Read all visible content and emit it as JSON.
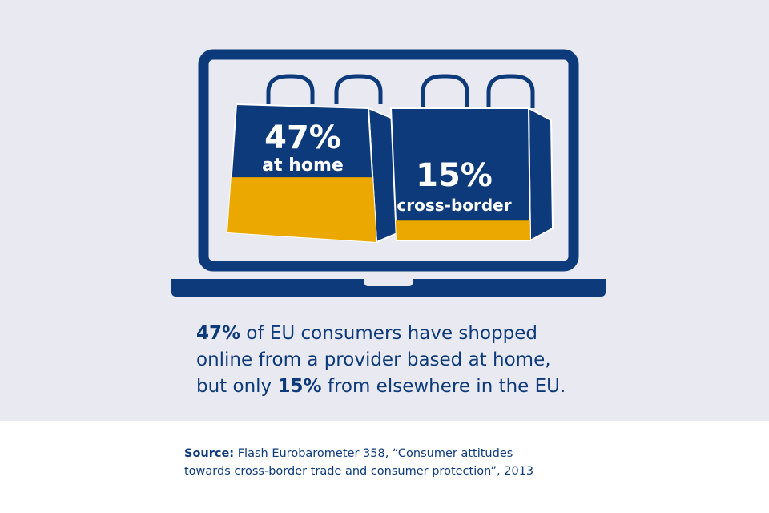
{
  "bags": [
    {
      "value": 47,
      "value_label": "47%",
      "label": "at home"
    },
    {
      "value": 15,
      "value_label": "15%",
      "label": "cross-border"
    }
  ],
  "statement": [
    "47%",
    " of EU consumers have shopped online from a provider based at home, but only ",
    "15%",
    " from elsewhere in the EU."
  ],
  "source": {
    "label": "Source:",
    "text": " Flash Eurobarometer 358, “Consumer attitudes towards cross-border trade and consumer protection”, 2013"
  }
}
